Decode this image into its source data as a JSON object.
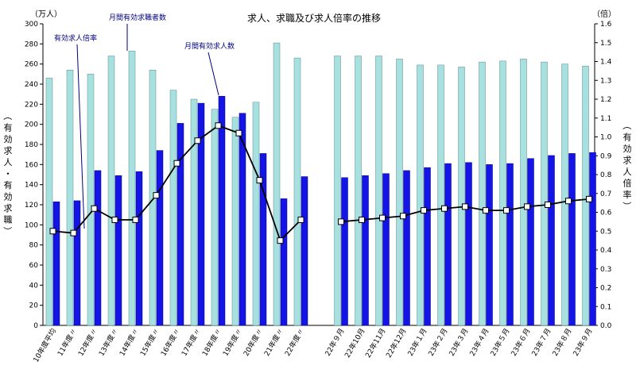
{
  "chart_data": {
    "type": "bar",
    "title": "求人、求職及び求人倍率の推移",
    "left_unit": "（万人）",
    "right_unit": "（倍）",
    "ylabel_left": "（有効求人・有効求職）",
    "ylabel_right": "（有効求人倍率）",
    "ylim_left": [
      0,
      300
    ],
    "ylim_right": [
      0,
      1.6
    ],
    "left_ticks": [
      "0",
      "20",
      "40",
      "60",
      "80",
      "100",
      "120",
      "140",
      "160",
      "180",
      "200",
      "220",
      "240",
      "260",
      "280",
      "300"
    ],
    "right_ticks": [
      "0.0",
      "0.1",
      "0.2",
      "0.3",
      "0.4",
      "0.5",
      "0.6",
      "0.7",
      "0.8",
      "0.9",
      "1.0",
      "1.1",
      "1.2",
      "1.3",
      "1.4",
      "1.5",
      "1.6"
    ],
    "categories": [
      "10年度平均",
      "11年度〃",
      "12年度〃",
      "13年度〃",
      "14年度〃",
      "15年度〃",
      "16年度〃",
      "17年度〃",
      "18年度〃",
      "19年度〃",
      "20年度〃",
      "21年度〃",
      "22年度〃",
      "22年９月",
      "22年10月",
      "22年11月",
      "22年12月",
      "23年１月",
      "23年２月",
      "23年３月",
      "23年４月",
      "23年５月",
      "23年６月",
      "23年７月",
      "23年８月",
      "23年９月"
    ],
    "series": [
      {
        "name": "月間有効求職者数",
        "type": "bar",
        "color": "#a8e0e0",
        "values": [
          246,
          254,
          250,
          268,
          273,
          254,
          234,
          225,
          215,
          207,
          222,
          281,
          266,
          268,
          268,
          268,
          265,
          259,
          259,
          257,
          262,
          263,
          265,
          262,
          260,
          258
        ]
      },
      {
        "name": "月間有効求人数",
        "type": "bar",
        "color": "#1414e6",
        "values": [
          123,
          124,
          154,
          149,
          153,
          174,
          201,
          221,
          228,
          211,
          171,
          126,
          148,
          147,
          149,
          151,
          154,
          157,
          161,
          162,
          160,
          161,
          166,
          169,
          171,
          172
        ]
      },
      {
        "name": "有効求人倍率",
        "type": "line",
        "axis": "right",
        "values": [
          0.5,
          0.49,
          0.62,
          0.56,
          0.56,
          0.69,
          0.86,
          0.98,
          1.06,
          1.02,
          0.77,
          0.45,
          0.56,
          0.55,
          0.56,
          0.57,
          0.58,
          0.61,
          0.62,
          0.63,
          0.61,
          0.61,
          0.63,
          0.64,
          0.66,
          0.67
        ]
      }
    ],
    "annotations": [
      "月間有効求職者数",
      "有効求人倍率",
      "月間有効求人数"
    ],
    "grid": false
  }
}
